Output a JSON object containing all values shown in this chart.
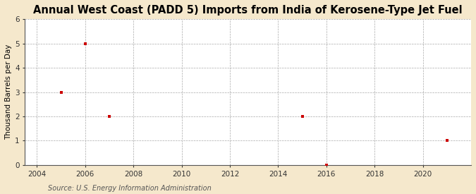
{
  "title": "Annual West Coast (PADD 5) Imports from India of Kerosene-Type Jet Fuel",
  "ylabel": "Thousand Barrels per Day",
  "source": "Source: U.S. Energy Information Administration",
  "x_data": [
    2005,
    2006,
    2007,
    2015,
    2016,
    2021
  ],
  "y_data": [
    3,
    5,
    2,
    2,
    0,
    1
  ],
  "xlim": [
    2003.5,
    2022.0
  ],
  "ylim": [
    0,
    6
  ],
  "xticks": [
    2004,
    2006,
    2008,
    2010,
    2012,
    2014,
    2016,
    2018,
    2020
  ],
  "yticks": [
    0,
    1,
    2,
    3,
    4,
    5,
    6
  ],
  "background_color": "#f5e8cc",
  "plot_bg_color": "#ffffff",
  "grid_color": "#aaaaaa",
  "marker_color": "#cc0000",
  "title_fontsize": 10.5,
  "axis_label_fontsize": 7.5,
  "tick_fontsize": 7.5,
  "source_fontsize": 7
}
